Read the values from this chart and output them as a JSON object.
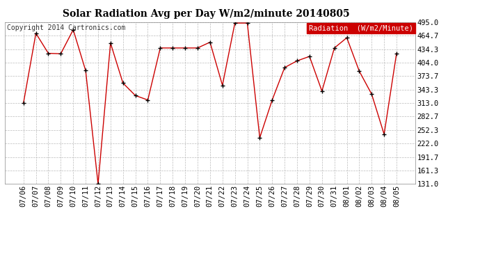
{
  "title": "Solar Radiation Avg per Day W/m2/minute 20140805",
  "copyright": "Copyright 2014 Cartronics.com",
  "legend_label": "Radiation  (W/m2/Minute)",
  "dates": [
    "07/06",
    "07/07",
    "07/08",
    "07/09",
    "07/10",
    "07/11",
    "07/12",
    "07/13",
    "07/14",
    "07/15",
    "07/16",
    "07/17",
    "07/18",
    "07/19",
    "07/20",
    "07/21",
    "07/22",
    "07/23",
    "07/24",
    "07/25",
    "07/26",
    "07/27",
    "07/28",
    "07/29",
    "07/30",
    "07/31",
    "08/01",
    "08/02",
    "08/03",
    "08/04",
    "08/05"
  ],
  "values": [
    313,
    470,
    425,
    424,
    478,
    386,
    131,
    448,
    358,
    330,
    320,
    437,
    437,
    437,
    437,
    450,
    353,
    493,
    493,
    235,
    320,
    393,
    408,
    418,
    340,
    437,
    460,
    385,
    333,
    243,
    425
  ],
  "ymin": 131.0,
  "ymax": 495.0,
  "yticks": [
    131.0,
    161.3,
    191.7,
    222.0,
    252.3,
    282.7,
    313.0,
    343.3,
    373.7,
    404.0,
    434.3,
    464.7,
    495.0
  ],
  "line_color": "#cc0000",
  "marker_color": "#000000",
  "bg_color": "#ffffff",
  "plot_bg_color": "#ffffff",
  "grid_color": "#bbbbbb",
  "title_fontsize": 10,
  "copyright_fontsize": 7,
  "tick_fontsize": 7.5,
  "legend_bg": "#cc0000",
  "legend_text_color": "#ffffff",
  "legend_fontsize": 7.5
}
